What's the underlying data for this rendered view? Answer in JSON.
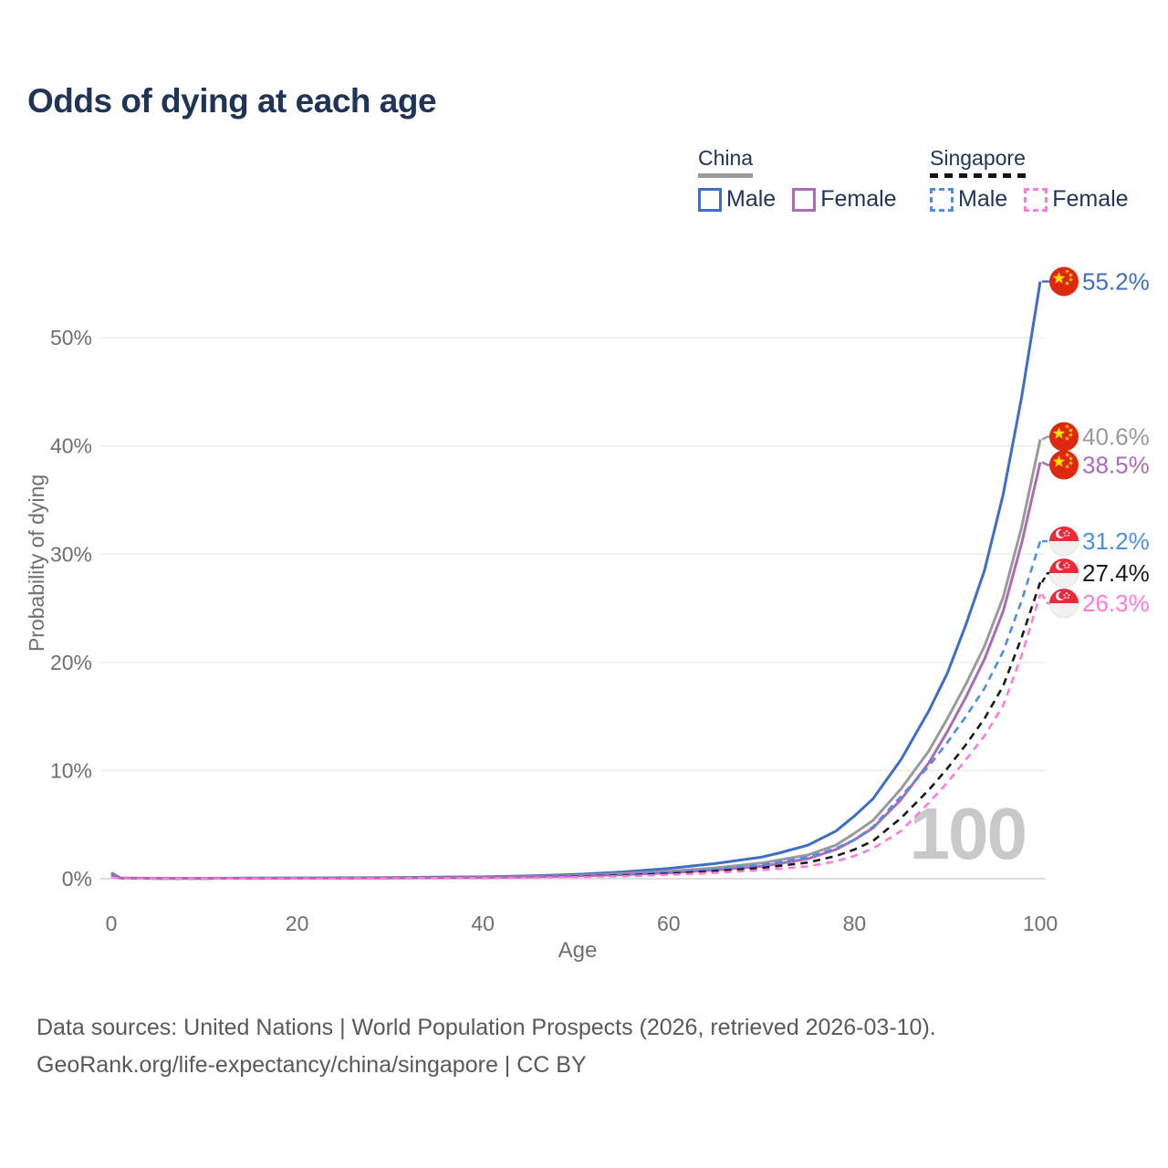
{
  "title": "Odds of dying at each age",
  "watermark": "100",
  "legend": {
    "groups": [
      {
        "label": "China",
        "line_style": "solid",
        "underline_color": "#9a9a9a",
        "items": [
          {
            "label": "Male",
            "color": "#3e6fc4"
          },
          {
            "label": "Female",
            "color": "#ae6bb5"
          }
        ]
      },
      {
        "label": "Singapore",
        "line_style": "dashed",
        "underline_color": "#151515",
        "items": [
          {
            "label": "Male",
            "color": "#4a8ee8"
          },
          {
            "label": "Female",
            "color": "#ff7ade"
          }
        ]
      }
    ]
  },
  "footer": {
    "line1": "Data sources: United Nations | World Population Prospects (2026, retrieved 2026-03-10).",
    "line2": "GeoRank.org/life-expectancy/china/singapore | CC BY"
  },
  "chart_data": {
    "type": "line",
    "title": "Odds of dying at each age",
    "xlabel": "Age",
    "ylabel": "Probability of dying",
    "xlim": [
      0,
      100
    ],
    "ylim_pct": [
      0,
      56
    ],
    "x_ticks": [
      0,
      20,
      40,
      60,
      80,
      100
    ],
    "y_ticks_pct": [
      0,
      10,
      20,
      30,
      40,
      50
    ],
    "y_tick_labels": [
      "0%",
      "10%",
      "20%",
      "30%",
      "40%",
      "50%"
    ],
    "grid": "horizontal",
    "legend_position": "top-right",
    "hover_age_watermark": "100",
    "series": [
      {
        "name": "China male",
        "country": "china",
        "sex": "male",
        "color": "#3e6fc4",
        "dash": "solid",
        "end_value_pct": 55.2,
        "end_label": "55.2%",
        "label_dy": 0,
        "points": [
          [
            0,
            0.55
          ],
          [
            1,
            0.07
          ],
          [
            5,
            0.04
          ],
          [
            10,
            0.04
          ],
          [
            15,
            0.06
          ],
          [
            20,
            0.08
          ],
          [
            25,
            0.09
          ],
          [
            30,
            0.11
          ],
          [
            35,
            0.14
          ],
          [
            40,
            0.18
          ],
          [
            45,
            0.26
          ],
          [
            50,
            0.4
          ],
          [
            55,
            0.62
          ],
          [
            60,
            0.95
          ],
          [
            65,
            1.4
          ],
          [
            70,
            2.0
          ],
          [
            72,
            2.4
          ],
          [
            75,
            3.1
          ],
          [
            78,
            4.4
          ],
          [
            80,
            5.8
          ],
          [
            82,
            7.4
          ],
          [
            85,
            11.0
          ],
          [
            88,
            15.5
          ],
          [
            90,
            19.0
          ],
          [
            92,
            23.5
          ],
          [
            94,
            28.5
          ],
          [
            96,
            35.5
          ],
          [
            98,
            44.5
          ],
          [
            100,
            55.2
          ]
        ]
      },
      {
        "name": "China both sexes",
        "country": "china",
        "sex": "both",
        "color": "#9a9a9a",
        "dash": "solid",
        "end_value_pct": 40.6,
        "end_label": "40.6%",
        "label_dy": -3,
        "points": [
          [
            0,
            0.48
          ],
          [
            1,
            0.06
          ],
          [
            5,
            0.03
          ],
          [
            10,
            0.03
          ],
          [
            15,
            0.05
          ],
          [
            20,
            0.07
          ],
          [
            25,
            0.08
          ],
          [
            30,
            0.09
          ],
          [
            35,
            0.11
          ],
          [
            40,
            0.14
          ],
          [
            45,
            0.2
          ],
          [
            50,
            0.3
          ],
          [
            55,
            0.46
          ],
          [
            60,
            0.68
          ],
          [
            65,
            1.0
          ],
          [
            70,
            1.45
          ],
          [
            75,
            2.2
          ],
          [
            78,
            3.1
          ],
          [
            80,
            4.2
          ],
          [
            82,
            5.4
          ],
          [
            85,
            8.3
          ],
          [
            88,
            11.8
          ],
          [
            90,
            14.8
          ],
          [
            92,
            18.0
          ],
          [
            94,
            21.5
          ],
          [
            96,
            26.0
          ],
          [
            98,
            32.5
          ],
          [
            100,
            40.6
          ]
        ]
      },
      {
        "name": "China female",
        "country": "china",
        "sex": "female",
        "color": "#ae6bb5",
        "dash": "solid",
        "end_value_pct": 38.5,
        "end_label": "38.5%",
        "label_dy": 3,
        "points": [
          [
            0,
            0.42
          ],
          [
            1,
            0.05
          ],
          [
            5,
            0.03
          ],
          [
            10,
            0.03
          ],
          [
            15,
            0.04
          ],
          [
            20,
            0.05
          ],
          [
            25,
            0.06
          ],
          [
            30,
            0.08
          ],
          [
            35,
            0.09
          ],
          [
            40,
            0.12
          ],
          [
            45,
            0.17
          ],
          [
            50,
            0.25
          ],
          [
            55,
            0.38
          ],
          [
            60,
            0.55
          ],
          [
            65,
            0.8
          ],
          [
            70,
            1.15
          ],
          [
            75,
            1.85
          ],
          [
            78,
            2.7
          ],
          [
            80,
            3.6
          ],
          [
            82,
            4.7
          ],
          [
            85,
            7.3
          ],
          [
            88,
            10.7
          ],
          [
            90,
            13.6
          ],
          [
            92,
            16.8
          ],
          [
            94,
            20.3
          ],
          [
            96,
            24.7
          ],
          [
            98,
            31.0
          ],
          [
            100,
            38.5
          ]
        ]
      },
      {
        "name": "Singapore male",
        "country": "singapore",
        "sex": "male",
        "color": "#4a8ee8",
        "dash": "dashed",
        "end_value_pct": 31.2,
        "end_label": "31.2%",
        "label_dy": 0,
        "points": [
          [
            0,
            0.22
          ],
          [
            1,
            0.03
          ],
          [
            5,
            0.02
          ],
          [
            10,
            0.02
          ],
          [
            15,
            0.04
          ],
          [
            20,
            0.05
          ],
          [
            25,
            0.06
          ],
          [
            30,
            0.07
          ],
          [
            35,
            0.09
          ],
          [
            40,
            0.11
          ],
          [
            45,
            0.16
          ],
          [
            50,
            0.25
          ],
          [
            55,
            0.38
          ],
          [
            60,
            0.58
          ],
          [
            65,
            0.88
          ],
          [
            70,
            1.3
          ],
          [
            75,
            2.0
          ],
          [
            78,
            2.8
          ],
          [
            80,
            3.6
          ],
          [
            82,
            4.8
          ],
          [
            85,
            7.6
          ],
          [
            88,
            10.4
          ],
          [
            90,
            12.6
          ],
          [
            92,
            15.0
          ],
          [
            94,
            17.6
          ],
          [
            96,
            21.0
          ],
          [
            98,
            25.7
          ],
          [
            100,
            31.2
          ]
        ]
      },
      {
        "name": "Singapore both sexes",
        "country": "singapore",
        "sex": "both",
        "color": "#1a1a1a",
        "dash": "dashed",
        "end_value_pct": 27.4,
        "end_label": "27.4%",
        "label_dy": -10,
        "points": [
          [
            0,
            0.2
          ],
          [
            1,
            0.03
          ],
          [
            5,
            0.02
          ],
          [
            10,
            0.02
          ],
          [
            15,
            0.03
          ],
          [
            20,
            0.04
          ],
          [
            25,
            0.05
          ],
          [
            30,
            0.06
          ],
          [
            35,
            0.07
          ],
          [
            40,
            0.09
          ],
          [
            45,
            0.13
          ],
          [
            50,
            0.2
          ],
          [
            55,
            0.3
          ],
          [
            60,
            0.46
          ],
          [
            65,
            0.7
          ],
          [
            70,
            1.0
          ],
          [
            75,
            1.5
          ],
          [
            78,
            2.1
          ],
          [
            80,
            2.7
          ],
          [
            82,
            3.5
          ],
          [
            85,
            5.6
          ],
          [
            88,
            8.2
          ],
          [
            90,
            10.2
          ],
          [
            92,
            12.4
          ],
          [
            94,
            14.8
          ],
          [
            96,
            17.8
          ],
          [
            98,
            22.3
          ],
          [
            100,
            27.4
          ]
        ]
      },
      {
        "name": "Singapore female",
        "country": "singapore",
        "sex": "female",
        "color": "#ff7ade",
        "dash": "dashed",
        "end_value_pct": 26.3,
        "end_label": "26.3%",
        "label_dy": 10,
        "points": [
          [
            0,
            0.17
          ],
          [
            1,
            0.02
          ],
          [
            5,
            0.02
          ],
          [
            10,
            0.02
          ],
          [
            15,
            0.03
          ],
          [
            20,
            0.03
          ],
          [
            25,
            0.04
          ],
          [
            30,
            0.05
          ],
          [
            35,
            0.06
          ],
          [
            40,
            0.08
          ],
          [
            45,
            0.11
          ],
          [
            50,
            0.16
          ],
          [
            55,
            0.24
          ],
          [
            60,
            0.36
          ],
          [
            65,
            0.55
          ],
          [
            70,
            0.8
          ],
          [
            75,
            1.15
          ],
          [
            78,
            1.6
          ],
          [
            80,
            2.1
          ],
          [
            82,
            2.8
          ],
          [
            85,
            4.4
          ],
          [
            88,
            7.0
          ],
          [
            90,
            8.9
          ],
          [
            92,
            11.0
          ],
          [
            94,
            13.2
          ],
          [
            96,
            16.0
          ],
          [
            98,
            20.6
          ],
          [
            100,
            26.3
          ]
        ]
      }
    ]
  }
}
